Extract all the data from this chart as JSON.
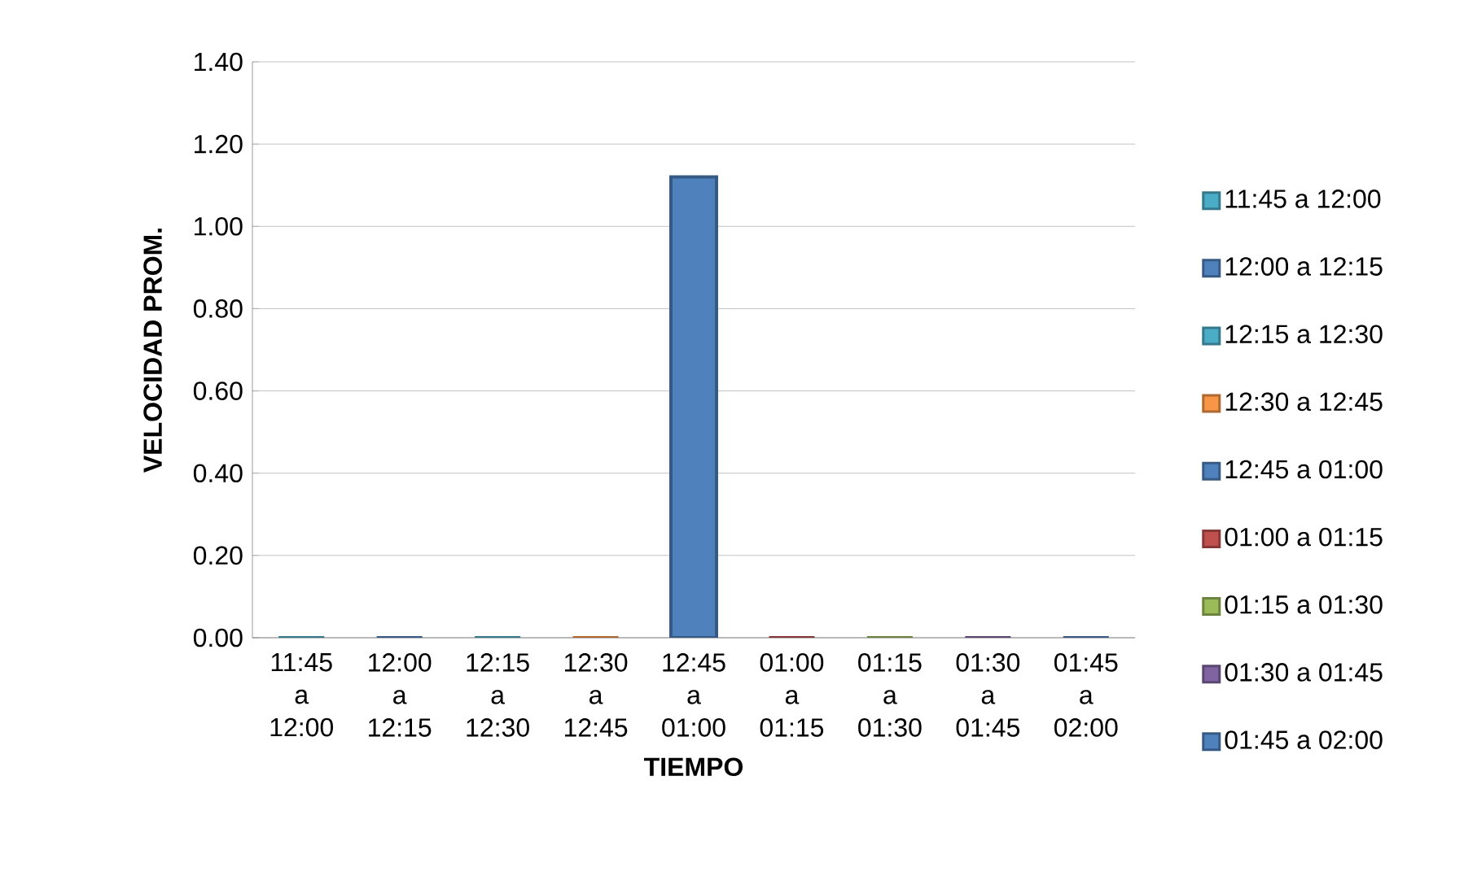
{
  "chart_data": {
    "type": "bar",
    "xlabel": "TIEMPO",
    "ylabel": "VELOCIDAD PROM.",
    "categories": [
      "11:45 a 12:00",
      "12:00 a 12:15",
      "12:15 a 12:30",
      "12:30 a 12:45",
      "12:45 a 01:00",
      "01:00 a 01:15",
      "01:15 a 01:30",
      "01:30 a 01:45",
      "01:45 a 02:00"
    ],
    "series": [
      {
        "name": "11:45 a 12:00",
        "color": "#4bacc6",
        "values": [
          0,
          null,
          null,
          null,
          null,
          null,
          null,
          null,
          null
        ]
      },
      {
        "name": "12:00 a 12:15",
        "color": "#4f81bd",
        "values": [
          null,
          0,
          null,
          null,
          null,
          null,
          null,
          null,
          null
        ]
      },
      {
        "name": "12:15 a 12:30",
        "color": "#4bacc6",
        "values": [
          null,
          null,
          0,
          null,
          null,
          null,
          null,
          null,
          null
        ]
      },
      {
        "name": "12:30 a 12:45",
        "color": "#f79646",
        "values": [
          null,
          null,
          null,
          0,
          null,
          null,
          null,
          null,
          null
        ]
      },
      {
        "name": "12:45 a 01:00",
        "color": "#4f81bd",
        "values": [
          null,
          null,
          null,
          null,
          1.12,
          null,
          null,
          null,
          null
        ]
      },
      {
        "name": "01:00 a 01:15",
        "color": "#c0504d",
        "values": [
          null,
          null,
          null,
          null,
          null,
          0,
          null,
          null,
          null
        ]
      },
      {
        "name": "01:15 a 01:30",
        "color": "#9bbb59",
        "values": [
          null,
          null,
          null,
          null,
          null,
          null,
          0,
          null,
          null
        ]
      },
      {
        "name": "01:30 a 01:45",
        "color": "#8064a2",
        "values": [
          null,
          null,
          null,
          null,
          null,
          null,
          null,
          0,
          null
        ]
      },
      {
        "name": "01:45 a 02:00",
        "color": "#4f81bd",
        "values": [
          null,
          null,
          null,
          null,
          null,
          null,
          null,
          null,
          0
        ]
      }
    ],
    "ylim": [
      0,
      1.4
    ],
    "yticks": [
      {
        "value": 0,
        "label": "0.00"
      },
      {
        "value": 0.2,
        "label": "0.20"
      },
      {
        "value": 0.4,
        "label": "0.40"
      },
      {
        "value": 0.6,
        "label": "0.60"
      },
      {
        "value": 0.8,
        "label": "0.80"
      },
      {
        "value": 1.0,
        "label": "1.00"
      },
      {
        "value": 1.2,
        "label": "1.20"
      },
      {
        "value": 1.4,
        "label": "1.40"
      }
    ],
    "grid": "y",
    "legend": "right"
  }
}
